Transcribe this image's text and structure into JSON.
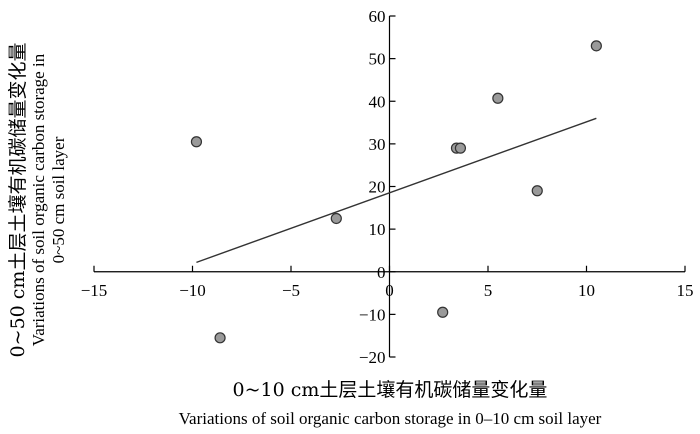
{
  "chart_data": {
    "type": "scatter",
    "xlabel_cn": "0~10 cm土层土壤有机碳储量变化量",
    "xlabel_en": "Variations of soil organic carbon storage in 0–10 cm soil layer",
    "ylabel_cn": "0~50 cm土层土壤有机碳储量变化量",
    "ylabel_en_line1": "Variations of soil organic carbon storage in",
    "ylabel_en_line2": "0~50 cm soil layer",
    "xlim": [
      -15,
      15
    ],
    "ylim": [
      -20,
      60
    ],
    "xticks": [
      -15,
      -10,
      -5,
      0,
      5,
      10,
      15
    ],
    "yticks": [
      -20,
      -10,
      0,
      10,
      20,
      30,
      40,
      50,
      60
    ],
    "points": [
      {
        "x": -9.8,
        "y": 30.5
      },
      {
        "x": -8.6,
        "y": -15.5
      },
      {
        "x": -2.7,
        "y": 12.5
      },
      {
        "x": 2.7,
        "y": -9.5
      },
      {
        "x": 3.4,
        "y": 29.0
      },
      {
        "x": 3.6,
        "y": 29.0
      },
      {
        "x": 5.5,
        "y": 40.7
      },
      {
        "x": 7.5,
        "y": 19.0
      },
      {
        "x": 10.5,
        "y": 53.0
      }
    ],
    "trendline": {
      "x": [
        -9.8,
        10.5
      ],
      "y": [
        2.2,
        36.0
      ]
    },
    "colors": {
      "marker_fill": "#9a9a9a",
      "marker_stroke": "#333333",
      "axis": "#000000",
      "trend": "#333333"
    }
  }
}
